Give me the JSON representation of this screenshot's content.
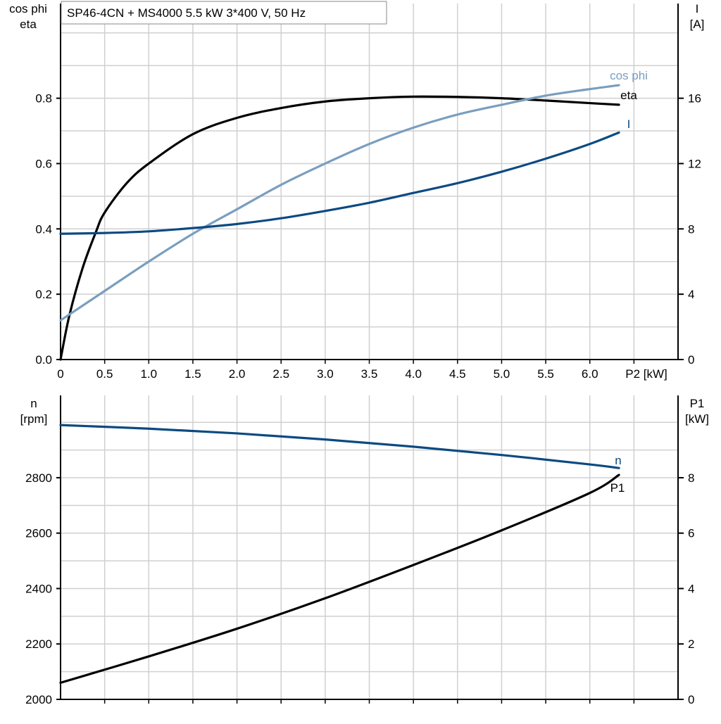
{
  "chart_data": [
    {
      "type": "line",
      "title": "SP46-4CN + MS4000   5.5 kW   3*400 V, 50 Hz",
      "xlabel": "P2 [kW]",
      "ylabel_left": [
        "cos phi",
        "eta"
      ],
      "ylabel_right": [
        "I",
        "[A]"
      ],
      "xlim": [
        0,
        7.0
      ],
      "ylim_left": [
        0,
        1.09
      ],
      "ylim_right": [
        0,
        21.8
      ],
      "grid": true,
      "x_ticks": [
        "0",
        "0.5",
        "1.0",
        "1.5",
        "2.0",
        "2.5",
        "3.0",
        "3.5",
        "4.0",
        "4.5",
        "5.0",
        "5.5",
        "6.0"
      ],
      "y_ticks_left": [
        "0.0",
        "0.2",
        "0.4",
        "0.6",
        "0.8"
      ],
      "y_ticks_right": [
        "0",
        "4",
        "8",
        "12",
        "16"
      ],
      "series": [
        {
          "name": "eta",
          "axis": "left",
          "color": "#000000",
          "x": [
            0,
            0.1,
            0.25,
            0.4,
            0.5,
            0.75,
            1.0,
            1.5,
            2.0,
            2.5,
            3.0,
            3.5,
            4.0,
            4.5,
            5.0,
            5.5,
            6.0,
            6.33
          ],
          "y": [
            0,
            0.135,
            0.28,
            0.39,
            0.45,
            0.54,
            0.6,
            0.69,
            0.74,
            0.77,
            0.79,
            0.8,
            0.805,
            0.804,
            0.8,
            0.793,
            0.785,
            0.78
          ]
        },
        {
          "name": "cos phi",
          "axis": "left",
          "color": "#7a9ebf",
          "x": [
            0,
            0.5,
            1.0,
            1.5,
            2.0,
            2.5,
            3.0,
            3.5,
            4.0,
            4.5,
            5.0,
            5.5,
            6.0,
            6.33
          ],
          "y": [
            0.12,
            0.21,
            0.3,
            0.385,
            0.46,
            0.535,
            0.6,
            0.66,
            0.71,
            0.75,
            0.78,
            0.808,
            0.828,
            0.84
          ]
        },
        {
          "name": "I",
          "axis": "right",
          "color": "#0b4a82",
          "x": [
            0,
            0.5,
            1.0,
            1.5,
            2.0,
            2.5,
            3.0,
            3.5,
            4.0,
            4.5,
            5.0,
            5.5,
            6.0,
            6.33
          ],
          "y": [
            7.7,
            7.75,
            7.85,
            8.05,
            8.3,
            8.65,
            9.1,
            9.6,
            10.2,
            10.8,
            11.5,
            12.3,
            13.2,
            13.9
          ]
        }
      ]
    },
    {
      "type": "line",
      "xlim": [
        0,
        7.0
      ],
      "ylabel_left": [
        "n",
        "[rpm]"
      ],
      "ylabel_right": [
        "P1",
        "[kW]"
      ],
      "ylim_left": [
        2000,
        3097
      ],
      "ylim_right": [
        0,
        10.97
      ],
      "grid": true,
      "y_ticks_left": [
        "2000",
        "2200",
        "2400",
        "2600",
        "2800"
      ],
      "y_ticks_right": [
        "0",
        "2",
        "4",
        "6",
        "8"
      ],
      "series": [
        {
          "name": "n",
          "axis": "left",
          "color": "#0b4a82",
          "x": [
            0,
            1.0,
            2.0,
            3.0,
            4.0,
            5.0,
            6.0,
            6.33
          ],
          "y": [
            2990,
            2977,
            2960,
            2938,
            2912,
            2882,
            2848,
            2835
          ]
        },
        {
          "name": "P1",
          "axis": "right",
          "color": "#000000",
          "x": [
            0,
            1.0,
            2.0,
            3.0,
            4.0,
            5.0,
            6.0,
            6.33
          ],
          "y": [
            0.6,
            1.55,
            2.55,
            3.65,
            4.85,
            6.1,
            7.45,
            8.1
          ]
        }
      ]
    }
  ]
}
